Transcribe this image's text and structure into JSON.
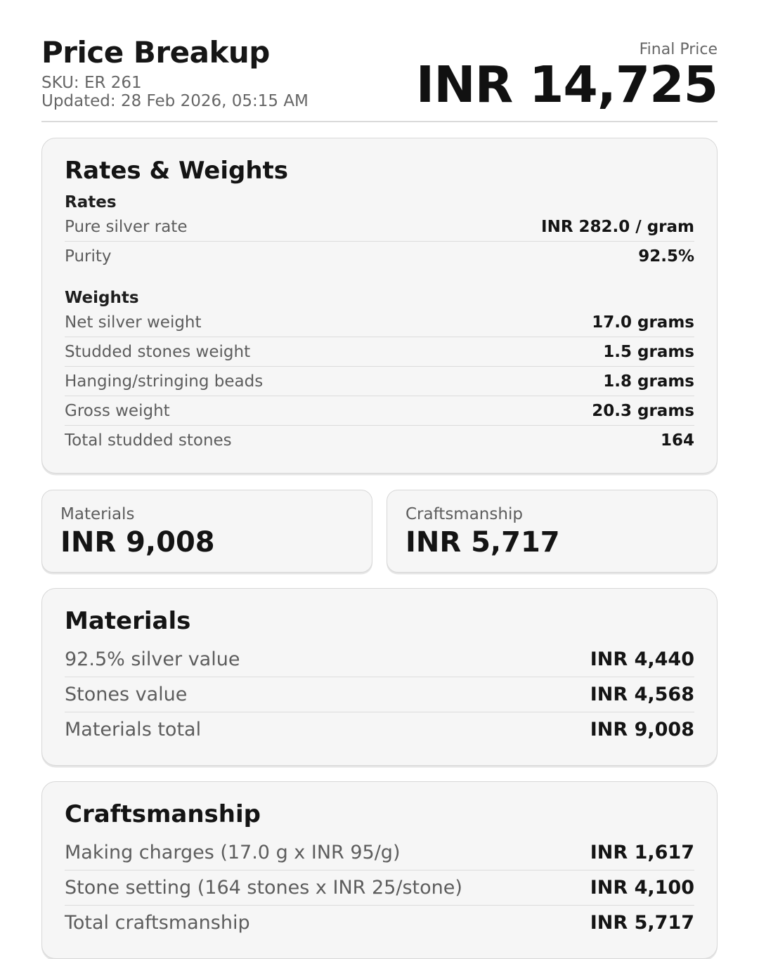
{
  "header": {
    "title": "Price Breakup",
    "sku": "SKU: ER 261",
    "updated": "Updated: 28 Feb 2026, 05:15 AM",
    "final_price_label": "Final Price",
    "final_price_value": "INR 14,725"
  },
  "rates_weights": {
    "heading": "Rates & Weights",
    "rates_heading": "Rates",
    "rates_rows": [
      {
        "label": "Pure silver rate",
        "value": "INR 282.0 / gram"
      },
      {
        "label": "Purity",
        "value": "92.5%"
      }
    ],
    "weights_heading": "Weights",
    "weights_rows": [
      {
        "label": "Net silver weight",
        "value": "17.0 grams"
      },
      {
        "label": "Studded stones weight",
        "value": "1.5 grams"
      },
      {
        "label": "Hanging/stringing beads",
        "value": "1.8 grams"
      },
      {
        "label": "Gross weight",
        "value": "20.3 grams"
      },
      {
        "label": "Total studded stones",
        "value": "164"
      }
    ]
  },
  "summary_cards": [
    {
      "label": "Materials",
      "value": "INR 9,008"
    },
    {
      "label": "Craftsmanship",
      "value": "INR 5,717"
    }
  ],
  "materials": {
    "heading": "Materials",
    "rows": [
      {
        "label": "92.5% silver value",
        "value": "INR 4,440"
      },
      {
        "label": "Stones value",
        "value": "INR 4,568"
      },
      {
        "label": "Materials total",
        "value": "INR 9,008"
      }
    ]
  },
  "craftsmanship": {
    "heading": "Craftsmanship",
    "rows": [
      {
        "label": "Making charges (17.0 g x INR 95/g)",
        "value": "INR 1,617"
      },
      {
        "label": "Stone setting (164 stones x INR 25/stone)",
        "value": "INR 4,100"
      },
      {
        "label": "Total craftsmanship",
        "value": "INR 5,717"
      }
    ]
  },
  "colors": {
    "page_background": "#ffffff",
    "card_background": "#f6f6f6",
    "card_border": "#d8d8d8",
    "row_divider": "#dcdcdc",
    "label_gray": "#5d5d5d",
    "text_black": "#141414"
  }
}
